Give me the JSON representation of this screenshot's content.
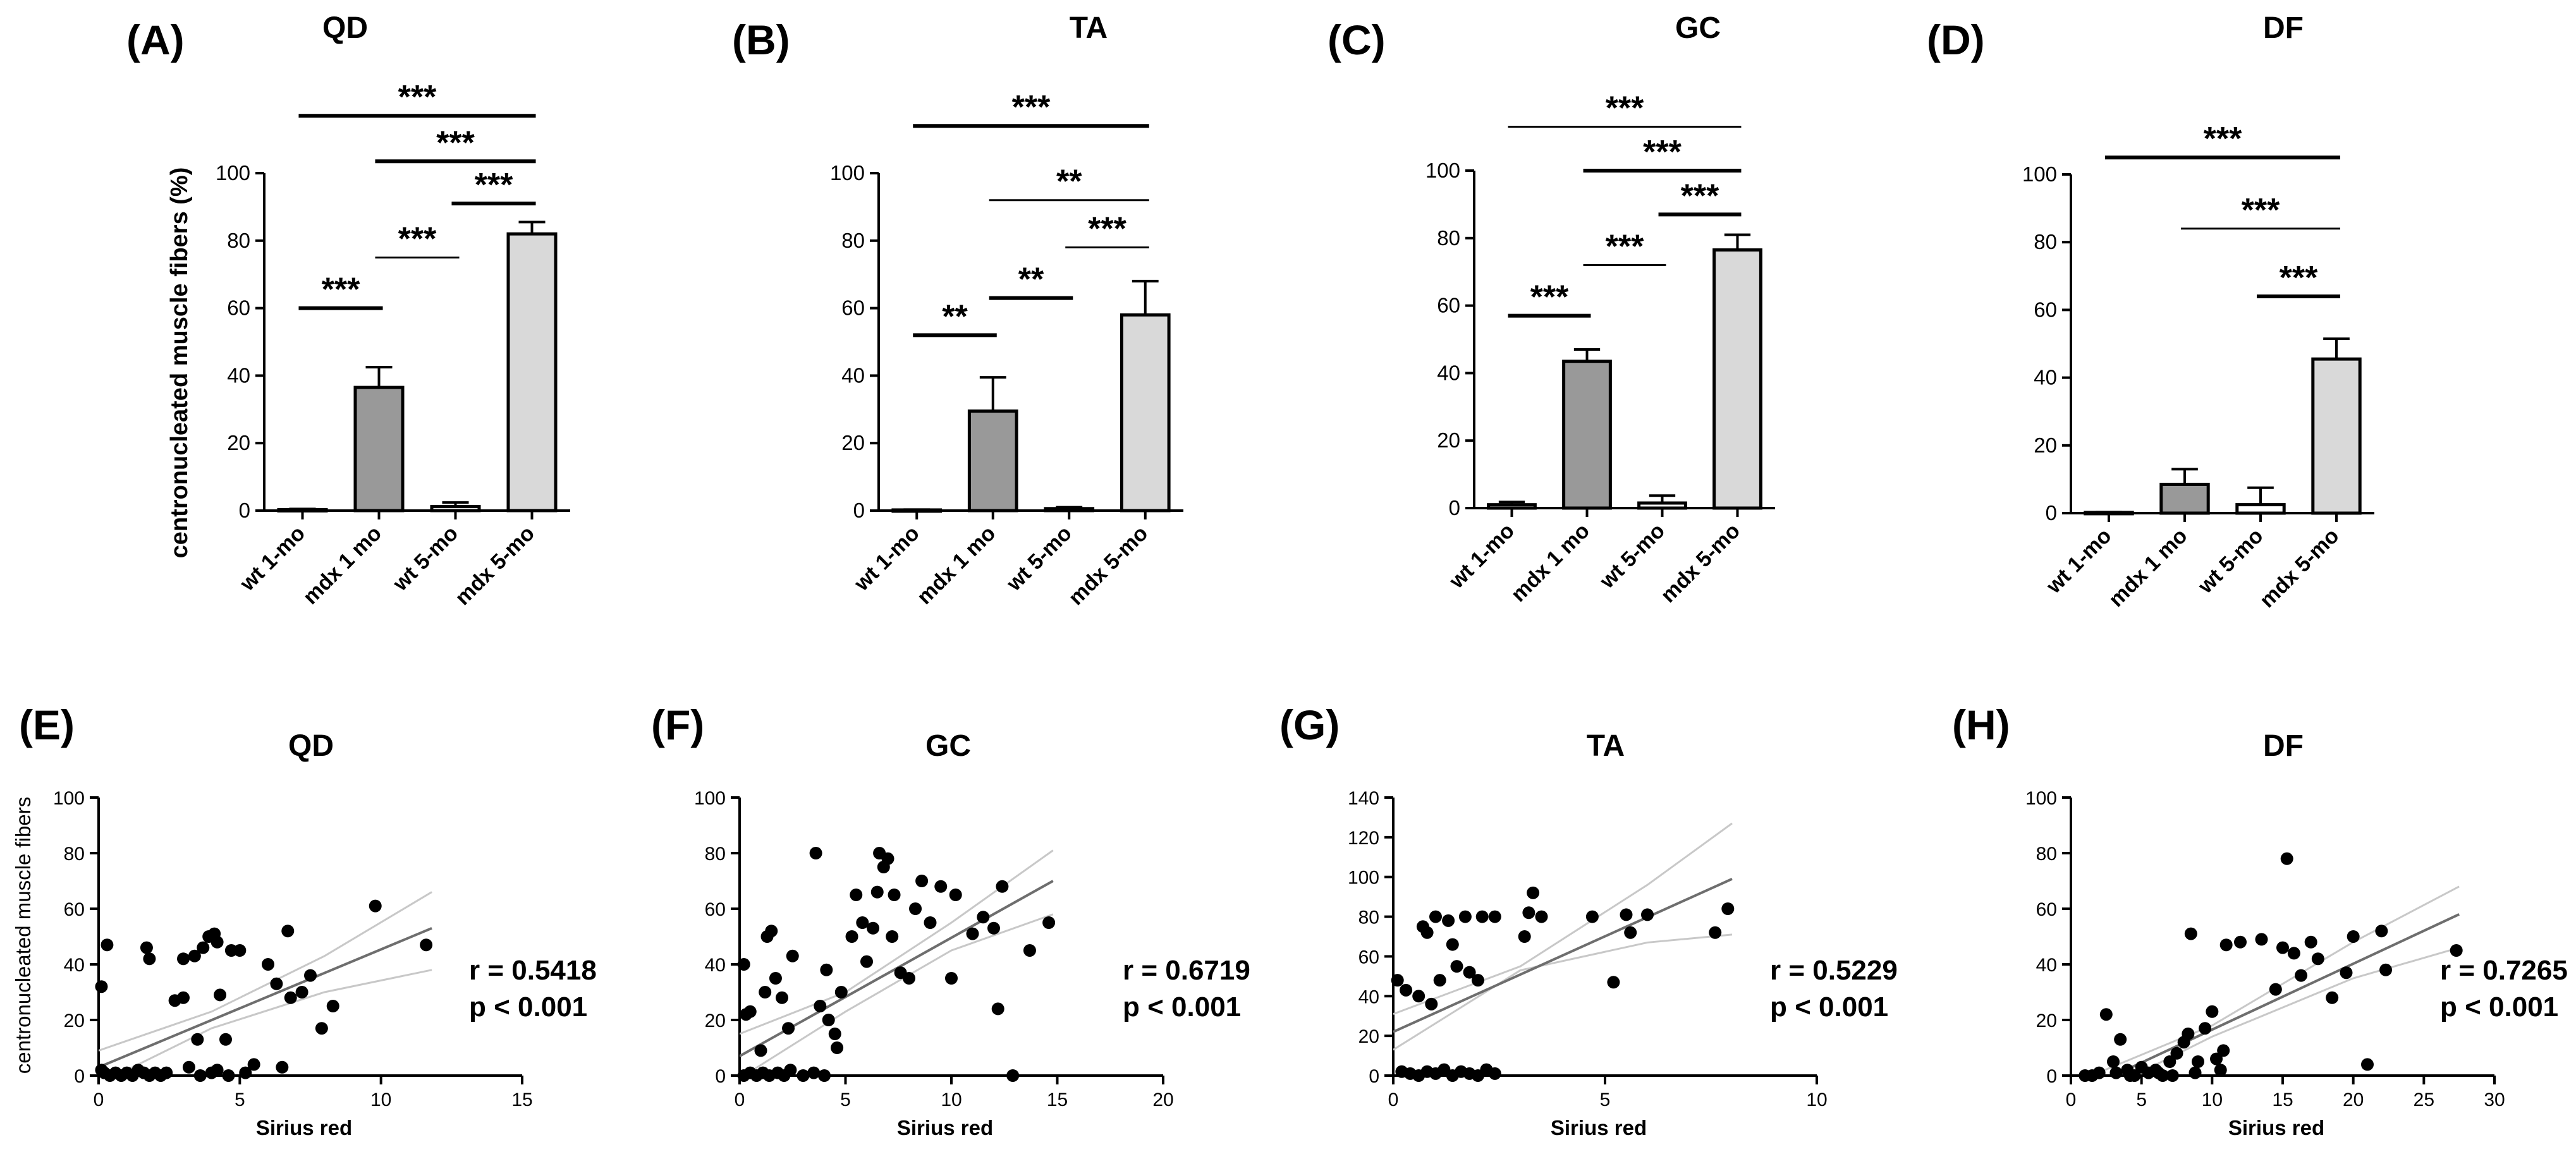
{
  "figure": {
    "ylabel_top": "centronucleated muscle fibers (%)",
    "ylabel_bottom": "centronucleated muscle fibers"
  },
  "chart_data": [
    {
      "id": "A",
      "letter": "(A)",
      "type": "bar",
      "title": "QD",
      "categories": [
        "wt 1-mo",
        "mdx 1 mo",
        "wt 5-mo",
        "mdx 5-mo"
      ],
      "values": [
        0.3,
        36.5,
        1.2,
        82
      ],
      "errors": [
        0.2,
        6,
        1.2,
        3.5
      ],
      "colors": [
        "#ffffff",
        "#999999",
        "#ffffff",
        "#d9d9d9"
      ],
      "ylim": [
        0,
        100
      ],
      "yticks": [
        0,
        20,
        40,
        60,
        80,
        100
      ],
      "ylabel": "centronucleated muscle fibers (%)",
      "brackets": [
        {
          "from": 0,
          "to": 1,
          "y": 60,
          "label": "***",
          "thick": true
        },
        {
          "from": 1,
          "to": 2,
          "y": 75,
          "label": "***",
          "thick": false
        },
        {
          "from": 2,
          "to": 3,
          "y": 91,
          "label": "***",
          "thick": true
        },
        {
          "from": 1,
          "to": 3,
          "y": 103.5,
          "label": "***",
          "thick": true
        },
        {
          "from": 0,
          "to": 3,
          "y": 117,
          "label": "***",
          "thick": true
        }
      ]
    },
    {
      "id": "B",
      "letter": "(B)",
      "type": "bar",
      "title": "TA",
      "categories": [
        "wt 1-mo",
        "mdx 1 mo",
        "wt 5-mo",
        "mdx 5-mo"
      ],
      "values": [
        0.2,
        29.5,
        0.6,
        58
      ],
      "errors": [
        0.1,
        10,
        0.4,
        10
      ],
      "colors": [
        "#ffffff",
        "#999999",
        "#ffffff",
        "#d9d9d9"
      ],
      "ylim": [
        0,
        100
      ],
      "yticks": [
        0,
        20,
        40,
        60,
        80,
        100
      ],
      "ylabel": "",
      "brackets": [
        {
          "from": 0,
          "to": 1,
          "y": 52,
          "label": "**",
          "thick": true
        },
        {
          "from": 1,
          "to": 2,
          "y": 63,
          "label": "**",
          "thick": true
        },
        {
          "from": 2,
          "to": 3,
          "y": 78,
          "label": "***",
          "thick": false
        },
        {
          "from": 1,
          "to": 3,
          "y": 92,
          "label": "**",
          "thick": false
        },
        {
          "from": 0,
          "to": 3,
          "y": 114,
          "label": "***",
          "thick": true
        }
      ]
    },
    {
      "id": "C",
      "letter": "(C)",
      "type": "bar",
      "title": "GC",
      "categories": [
        "wt 1-mo",
        "mdx 1 mo",
        "wt 5-mo",
        "mdx 5-mo"
      ],
      "values": [
        1,
        43.5,
        1.5,
        76.5
      ],
      "errors": [
        0.8,
        3.5,
        2.2,
        4.5
      ],
      "colors": [
        "#ffffff",
        "#999999",
        "#ffffff",
        "#d9d9d9"
      ],
      "ylim": [
        0,
        100
      ],
      "yticks": [
        0,
        20,
        40,
        60,
        80,
        100
      ],
      "ylabel": "",
      "brackets": [
        {
          "from": 0,
          "to": 1,
          "y": 57,
          "label": "***",
          "thick": true
        },
        {
          "from": 1,
          "to": 2,
          "y": 72,
          "label": "***",
          "thick": false
        },
        {
          "from": 2,
          "to": 3,
          "y": 87,
          "label": "***",
          "thick": true
        },
        {
          "from": 1,
          "to": 3,
          "y": 100,
          "label": "***",
          "thick": true
        },
        {
          "from": 0,
          "to": 3,
          "y": 113,
          "label": "***",
          "thick": false
        }
      ]
    },
    {
      "id": "D",
      "letter": "(D)",
      "type": "bar",
      "title": "DF",
      "categories": [
        "wt 1-mo",
        "mdx 1 mo",
        "wt 5-mo",
        "mdx 5-mo"
      ],
      "values": [
        0.2,
        8.5,
        2.5,
        45.5
      ],
      "errors": [
        0.1,
        4.5,
        5,
        6
      ],
      "colors": [
        "#ffffff",
        "#999999",
        "#ffffff",
        "#d9d9d9"
      ],
      "ylim": [
        0,
        100
      ],
      "yticks": [
        0,
        20,
        40,
        60,
        80,
        100
      ],
      "ylabel": "",
      "brackets": [
        {
          "from": 2,
          "to": 3,
          "y": 64,
          "label": "***",
          "thick": true
        },
        {
          "from": 1,
          "to": 3,
          "y": 84,
          "label": "***",
          "thick": false
        },
        {
          "from": 0,
          "to": 3,
          "y": 105,
          "label": "***",
          "thick": true
        }
      ]
    },
    {
      "id": "E",
      "letter": "(E)",
      "type": "scatter",
      "title": "QD",
      "xlabel": "Sirius red",
      "ylabel": "centronucleated muscle fibers",
      "xlim": [
        0,
        15
      ],
      "xticks": [
        0,
        5,
        10,
        15
      ],
      "ylim": [
        0,
        100
      ],
      "yticks": [
        0,
        20,
        40,
        60,
        80,
        100
      ],
      "stat_r": "r = 0.5418",
      "stat_p": "p < 0.001",
      "fit": {
        "x1": 0,
        "y1": 3,
        "x2": 11.8,
        "y2": 53
      },
      "ci_upper": [
        [
          0,
          9
        ],
        [
          4,
          23
        ],
        [
          8,
          43
        ],
        [
          11.8,
          66
        ]
      ],
      "ci_lower": [
        [
          0,
          -3
        ],
        [
          4,
          17
        ],
        [
          8,
          30
        ],
        [
          11.8,
          38
        ]
      ],
      "points": [
        [
          0.1,
          32
        ],
        [
          0.3,
          47
        ],
        [
          1.7,
          46
        ],
        [
          1.8,
          42
        ],
        [
          2.7,
          27
        ],
        [
          3.0,
          28
        ],
        [
          3.0,
          42
        ],
        [
          3.4,
          43
        ],
        [
          3.5,
          13
        ],
        [
          3.7,
          46
        ],
        [
          3.9,
          50
        ],
        [
          4.1,
          51
        ],
        [
          4.2,
          48
        ],
        [
          4.3,
          29
        ],
        [
          4.5,
          13
        ],
        [
          4.7,
          45
        ],
        [
          5.0,
          45
        ],
        [
          6.0,
          40
        ],
        [
          6.3,
          33
        ],
        [
          6.7,
          52
        ],
        [
          6.8,
          28
        ],
        [
          7.2,
          30
        ],
        [
          7.5,
          36
        ],
        [
          7.9,
          17
        ],
        [
          8.3,
          25
        ],
        [
          9.8,
          61
        ],
        [
          11.6,
          47
        ],
        [
          5.5,
          4
        ],
        [
          4.2,
          2
        ],
        [
          3.2,
          3
        ],
        [
          0.1,
          2
        ],
        [
          0.2,
          1
        ],
        [
          0.4,
          0
        ],
        [
          0.6,
          1
        ],
        [
          0.8,
          0
        ],
        [
          1.0,
          1
        ],
        [
          1.2,
          0
        ],
        [
          1.4,
          2
        ],
        [
          1.6,
          1
        ],
        [
          1.8,
          0
        ],
        [
          2.0,
          1
        ],
        [
          2.2,
          0
        ],
        [
          2.4,
          1
        ],
        [
          3.6,
          0
        ],
        [
          4.0,
          1
        ],
        [
          4.6,
          0
        ],
        [
          5.2,
          1
        ],
        [
          6.5,
          3
        ]
      ]
    },
    {
      "id": "F",
      "letter": "(F)",
      "type": "scatter",
      "title": "GC",
      "xlabel": "Sirius red",
      "ylabel": "",
      "xlim": [
        0,
        20
      ],
      "xticks": [
        0,
        5,
        10,
        15,
        20
      ],
      "ylim": [
        0,
        100
      ],
      "yticks": [
        0,
        20,
        40,
        60,
        80,
        100
      ],
      "stat_r": "r = 0.6719",
      "stat_p": "p < 0.001",
      "fit": {
        "x1": 0,
        "y1": 7,
        "x2": 14.8,
        "y2": 70
      },
      "ci_upper": [
        [
          0,
          15
        ],
        [
          5,
          30
        ],
        [
          10,
          55
        ],
        [
          14.8,
          81
        ]
      ],
      "ci_lower": [
        [
          0,
          -1
        ],
        [
          5,
          23
        ],
        [
          10,
          45
        ],
        [
          14.8,
          58
        ]
      ],
      "points": [
        [
          0.2,
          40
        ],
        [
          0.3,
          22
        ],
        [
          0.5,
          23
        ],
        [
          1.0,
          9
        ],
        [
          1.2,
          30
        ],
        [
          1.3,
          50
        ],
        [
          1.5,
          52
        ],
        [
          1.7,
          35
        ],
        [
          2.0,
          28
        ],
        [
          2.3,
          17
        ],
        [
          2.5,
          43
        ],
        [
          3.6,
          80
        ],
        [
          3.8,
          25
        ],
        [
          4.1,
          38
        ],
        [
          4.2,
          20
        ],
        [
          4.5,
          15
        ],
        [
          4.6,
          10
        ],
        [
          4.8,
          30
        ],
        [
          5.3,
          50
        ],
        [
          5.5,
          65
        ],
        [
          5.8,
          55
        ],
        [
          6.0,
          41
        ],
        [
          6.3,
          53
        ],
        [
          6.5,
          66
        ],
        [
          6.6,
          80
        ],
        [
          6.8,
          75
        ],
        [
          7.0,
          78
        ],
        [
          7.2,
          50
        ],
        [
          7.3,
          65
        ],
        [
          7.6,
          37
        ],
        [
          8.0,
          35
        ],
        [
          8.3,
          60
        ],
        [
          8.6,
          70
        ],
        [
          9.0,
          55
        ],
        [
          9.5,
          68
        ],
        [
          10.0,
          35
        ],
        [
          10.2,
          65
        ],
        [
          11.0,
          51
        ],
        [
          11.5,
          57
        ],
        [
          12.0,
          53
        ],
        [
          12.2,
          24
        ],
        [
          12.4,
          68
        ],
        [
          12.9,
          0
        ],
        [
          13.7,
          45
        ],
        [
          14.6,
          55
        ],
        [
          0.2,
          0
        ],
        [
          0.5,
          1
        ],
        [
          0.8,
          0
        ],
        [
          1.1,
          1
        ],
        [
          1.4,
          0
        ],
        [
          1.8,
          1
        ],
        [
          2.1,
          0
        ],
        [
          2.4,
          2
        ],
        [
          3.0,
          0
        ],
        [
          3.5,
          1
        ],
        [
          4.0,
          0
        ]
      ]
    },
    {
      "id": "G",
      "letter": "(G)",
      "type": "scatter",
      "title": "TA",
      "xlabel": "Sirius red",
      "ylabel": "",
      "xlim": [
        0,
        10
      ],
      "xticks": [
        0,
        5,
        10
      ],
      "ylim": [
        0,
        140
      ],
      "yticks": [
        0,
        20,
        40,
        60,
        80,
        100,
        120,
        140
      ],
      "stat_r": "r = 0.5229",
      "stat_p": "p < 0.001",
      "fit": {
        "x1": 0,
        "y1": 22,
        "x2": 8,
        "y2": 99
      },
      "ci_upper": [
        [
          0,
          31
        ],
        [
          3,
          55
        ],
        [
          6,
          96
        ],
        [
          8,
          127
        ]
      ],
      "ci_lower": [
        [
          0,
          13
        ],
        [
          3,
          53
        ],
        [
          6,
          67
        ],
        [
          8,
          71
        ]
      ],
      "points": [
        [
          0.1,
          48
        ],
        [
          0.3,
          43
        ],
        [
          0.6,
          40
        ],
        [
          0.7,
          75
        ],
        [
          0.8,
          72
        ],
        [
          0.9,
          36
        ],
        [
          1.0,
          80
        ],
        [
          1.1,
          48
        ],
        [
          1.3,
          78
        ],
        [
          1.4,
          66
        ],
        [
          1.5,
          55
        ],
        [
          1.7,
          80
        ],
        [
          1.8,
          52
        ],
        [
          2.0,
          48
        ],
        [
          2.1,
          80
        ],
        [
          2.4,
          80
        ],
        [
          3.1,
          70
        ],
        [
          3.2,
          82
        ],
        [
          3.3,
          92
        ],
        [
          3.5,
          80
        ],
        [
          4.7,
          80
        ],
        [
          5.2,
          47
        ],
        [
          5.5,
          81
        ],
        [
          5.6,
          72
        ],
        [
          6.0,
          81
        ],
        [
          7.6,
          72
        ],
        [
          7.9,
          84
        ],
        [
          0.2,
          2
        ],
        [
          0.4,
          1
        ],
        [
          0.6,
          0
        ],
        [
          0.8,
          2
        ],
        [
          1.0,
          1
        ],
        [
          1.2,
          3
        ],
        [
          1.4,
          0
        ],
        [
          1.6,
          2
        ],
        [
          1.8,
          1
        ],
        [
          2.0,
          0
        ],
        [
          2.2,
          3
        ],
        [
          2.4,
          1
        ]
      ]
    },
    {
      "id": "H",
      "letter": "(H)",
      "type": "scatter",
      "title": "DF",
      "xlabel": "Sirius red",
      "ylabel": "",
      "xlim": [
        0,
        30
      ],
      "xticks": [
        0,
        5,
        10,
        15,
        20,
        25,
        30
      ],
      "ylim": [
        0,
        100
      ],
      "yticks": [
        0,
        20,
        40,
        60,
        80,
        100
      ],
      "stat_r": "r = 0.7265",
      "stat_p": "p < 0.001",
      "fit": {
        "x1": 0.5,
        "y1": -6,
        "x2": 27.5,
        "y2": 58
      },
      "ci_upper": [
        [
          0.5,
          -2
        ],
        [
          10,
          18
        ],
        [
          20,
          48
        ],
        [
          27.5,
          68
        ]
      ],
      "ci_lower": [
        [
          0.5,
          -10
        ],
        [
          10,
          14
        ],
        [
          20,
          35
        ],
        [
          27.5,
          46
        ]
      ],
      "points": [
        [
          1.5,
          0
        ],
        [
          2.0,
          1
        ],
        [
          2.5,
          22
        ],
        [
          3.0,
          5
        ],
        [
          3.5,
          13
        ],
        [
          4.0,
          2
        ],
        [
          4.5,
          0
        ],
        [
          5.0,
          3
        ],
        [
          5.5,
          1
        ],
        [
          6.0,
          2
        ],
        [
          6.5,
          0
        ],
        [
          7.0,
          5
        ],
        [
          7.5,
          8
        ],
        [
          8.0,
          12
        ],
        [
          8.3,
          15
        ],
        [
          8.5,
          51
        ],
        [
          9.0,
          5
        ],
        [
          9.5,
          17
        ],
        [
          10.0,
          23
        ],
        [
          10.3,
          6
        ],
        [
          10.6,
          2
        ],
        [
          10.8,
          9
        ],
        [
          11.0,
          47
        ],
        [
          12.0,
          48
        ],
        [
          13.5,
          49
        ],
        [
          14.5,
          31
        ],
        [
          15.0,
          46
        ],
        [
          15.3,
          78
        ],
        [
          15.8,
          44
        ],
        [
          16.3,
          36
        ],
        [
          17.0,
          48
        ],
        [
          17.5,
          42
        ],
        [
          18.5,
          28
        ],
        [
          19.5,
          37
        ],
        [
          20.0,
          50
        ],
        [
          21.0,
          4
        ],
        [
          22.0,
          52
        ],
        [
          22.3,
          38
        ],
        [
          27.3,
          45
        ],
        [
          1.0,
          0
        ],
        [
          3.2,
          1
        ],
        [
          4.2,
          0
        ],
        [
          6.2,
          1
        ],
        [
          7.2,
          0
        ],
        [
          8.8,
          1
        ]
      ]
    }
  ]
}
